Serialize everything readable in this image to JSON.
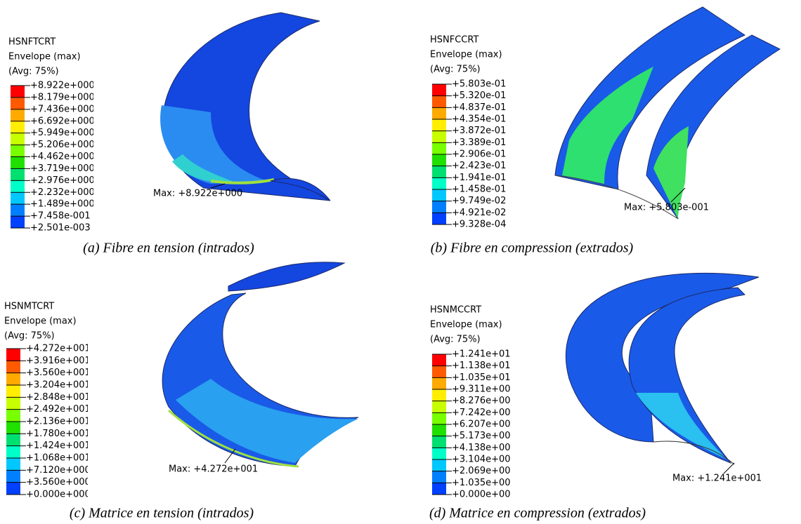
{
  "legend_colors": [
    "#ff0000",
    "#ff5a00",
    "#ffaa00",
    "#ffee00",
    "#c8ff00",
    "#78ff00",
    "#20e000",
    "#00e070",
    "#00ffc8",
    "#00c8ff",
    "#0080ff",
    "#0040ff"
  ],
  "panels": [
    {
      "legend": {
        "title": [
          "HSNFTCRT",
          "Envelope (max)",
          "(Avg: 75%)"
        ],
        "labels": [
          "+8.922e+000",
          "+8.179e+000",
          "+7.436e+000",
          "+6.692e+000",
          "+5.949e+000",
          "+5.206e+000",
          "+4.462e+000",
          "+3.719e+000",
          "+2.976e+000",
          "+2.232e+000",
          "+1.489e+000",
          "+7.458e-001",
          "+2.501e-003"
        ]
      },
      "max_label": "Max: +8.922e+000",
      "caption": "(a) Fibre en tension (intrados)"
    },
    {
      "legend": {
        "title": [
          "HSNFCCRT",
          "Envelope (max)",
          "(Avg: 75%)"
        ],
        "labels": [
          "+5.803e-01",
          "+5.320e-01",
          "+4.837e-01",
          "+4.354e-01",
          "+3.872e-01",
          "+3.389e-01",
          "+2.906e-01",
          "+2.423e-01",
          "+1.941e-01",
          "+1.458e-01",
          "+9.749e-02",
          "+4.921e-02",
          "+9.328e-04"
        ]
      },
      "max_label": "Max: +5.803e-001",
      "caption": "(b) Fibre en compression (extrados)"
    },
    {
      "legend": {
        "title": [
          "HSNMTCRT",
          "Envelope (max)",
          "(Avg: 75%)"
        ],
        "labels": [
          "+4.272e+001",
          "+3.916e+001",
          "+3.560e+001",
          "+3.204e+001",
          "+2.848e+001",
          "+2.492e+001",
          "+2.136e+001",
          "+1.780e+001",
          "+1.424e+001",
          "+1.068e+001",
          "+7.120e+000",
          "+3.560e+000",
          "+0.000e+000"
        ]
      },
      "max_label": "Max: +4.272e+001",
      "caption": "(c) Matrice en tension (intrados)"
    },
    {
      "legend": {
        "title": [
          "HSNMCCRT",
          "Envelope (max)",
          "(Avg: 75%)"
        ],
        "labels": [
          "+1.241e+01",
          "+1.138e+01",
          "+1.035e+01",
          "+9.311e+00",
          "+8.276e+00",
          "+7.242e+00",
          "+6.207e+00",
          "+5.173e+00",
          "+4.138e+00",
          "+3.104e+00",
          "+2.069e+00",
          "+1.035e+00",
          "+0.000e+00"
        ]
      },
      "max_label": "Max: +1.241e+001",
      "caption": "(d) Matrice en compression (extrados)"
    }
  ]
}
